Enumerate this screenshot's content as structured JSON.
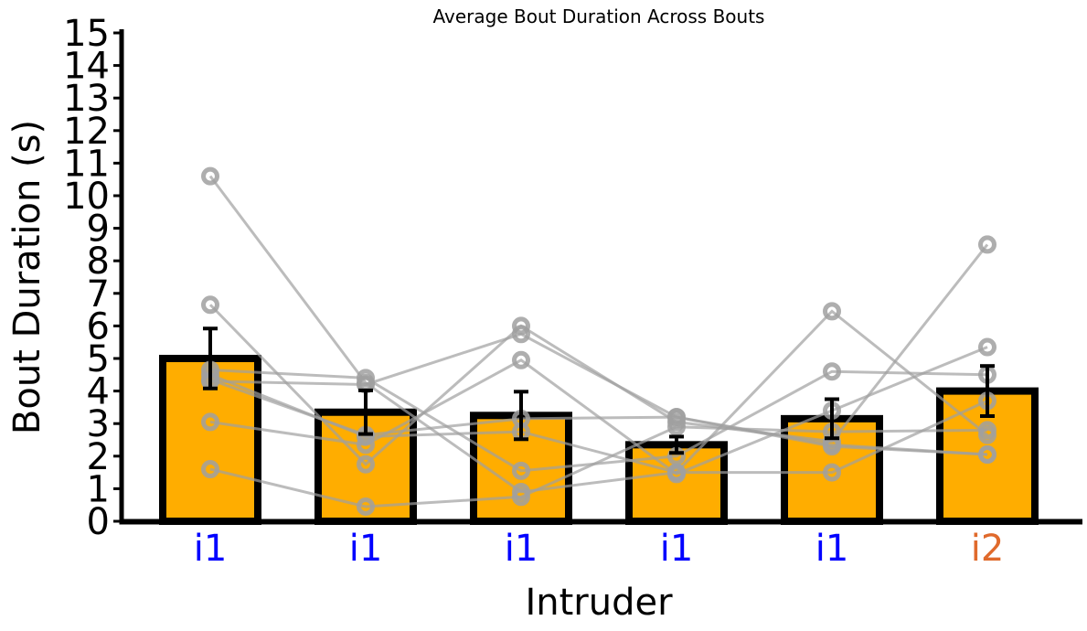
{
  "chart_data": {
    "type": "bar",
    "title": "Average Bout Duration Across Bouts",
    "xlabel": "Intruder",
    "ylabel": "Bout Duration (s)",
    "ylim": [
      0,
      15
    ],
    "yticks": [
      0,
      1,
      2,
      3,
      4,
      5,
      6,
      7,
      8,
      9,
      10,
      11,
      12,
      13,
      14,
      15
    ],
    "categories": [
      "i1",
      "i1",
      "i1",
      "i1",
      "i1",
      "i2"
    ],
    "category_colors": [
      "#0000ff",
      "#0000ff",
      "#0000ff",
      "#0000ff",
      "#0000ff",
      "#e06a2c"
    ],
    "values": [
      5.0,
      3.35,
      3.25,
      2.35,
      3.15,
      4.0
    ],
    "error": [
      0.92,
      0.67,
      0.73,
      0.25,
      0.6,
      0.77
    ],
    "bar_color": "#ffad00",
    "bar_edge_color": "#000000",
    "subject_line_color": "#a0a0a0",
    "subjects": [
      {
        "values": [
          10.6,
          4.25,
          0.9,
          1.5,
          6.45,
          2.65
        ]
      },
      {
        "values": [
          6.65,
          1.75,
          6.0,
          3.05,
          2.45,
          8.5
        ]
      },
      {
        "values": [
          4.65,
          4.4,
          1.55,
          2.0,
          4.6,
          4.5
        ]
      },
      {
        "values": [
          4.5,
          2.6,
          2.75,
          1.5,
          1.5,
          3.7
        ]
      },
      {
        "values": [
          4.3,
          4.2,
          5.75,
          3.2,
          2.3,
          2.05
        ]
      },
      {
        "values": [
          3.05,
          2.35,
          4.95,
          1.45,
          3.4,
          5.35
        ]
      },
      {
        "values": [
          1.6,
          0.45,
          0.75,
          2.9,
          2.75,
          2.8
        ]
      },
      {
        "values": [
          4.35,
          2.65,
          3.15,
          3.2,
          2.35,
          2.05
        ]
      }
    ],
    "grid": false,
    "legend": "none"
  }
}
